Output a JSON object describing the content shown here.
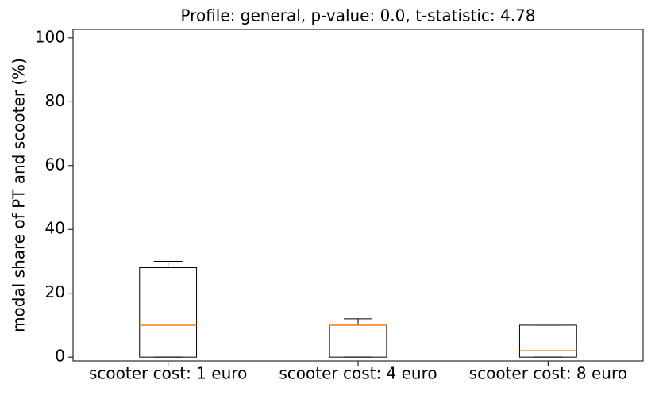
{
  "chart_data": {
    "type": "box",
    "title": "Profile: general, p-value: 0.0, t-statistic: 4.78",
    "y_label": "modal share of PT and scooter (%)",
    "categories": [
      "scooter cost: 1 euro",
      "scooter cost: 4 euro",
      "scooter cost: 8 euro"
    ],
    "boxes": [
      {
        "min": 0,
        "q1": 0,
        "median": 10,
        "q3": 28,
        "max": 30
      },
      {
        "min": 0,
        "q1": 0,
        "median": 10,
        "q3": 10,
        "max": 12
      },
      {
        "min": 0,
        "q1": 0,
        "median": 2,
        "q3": 10,
        "max": 10
      }
    ],
    "color": "#000000",
    "median_color": "#ff7f0e",
    "ylim": [
      -1.2,
      102.7
    ],
    "yticks": [
      0,
      20,
      40,
      60,
      80,
      100
    ]
  }
}
